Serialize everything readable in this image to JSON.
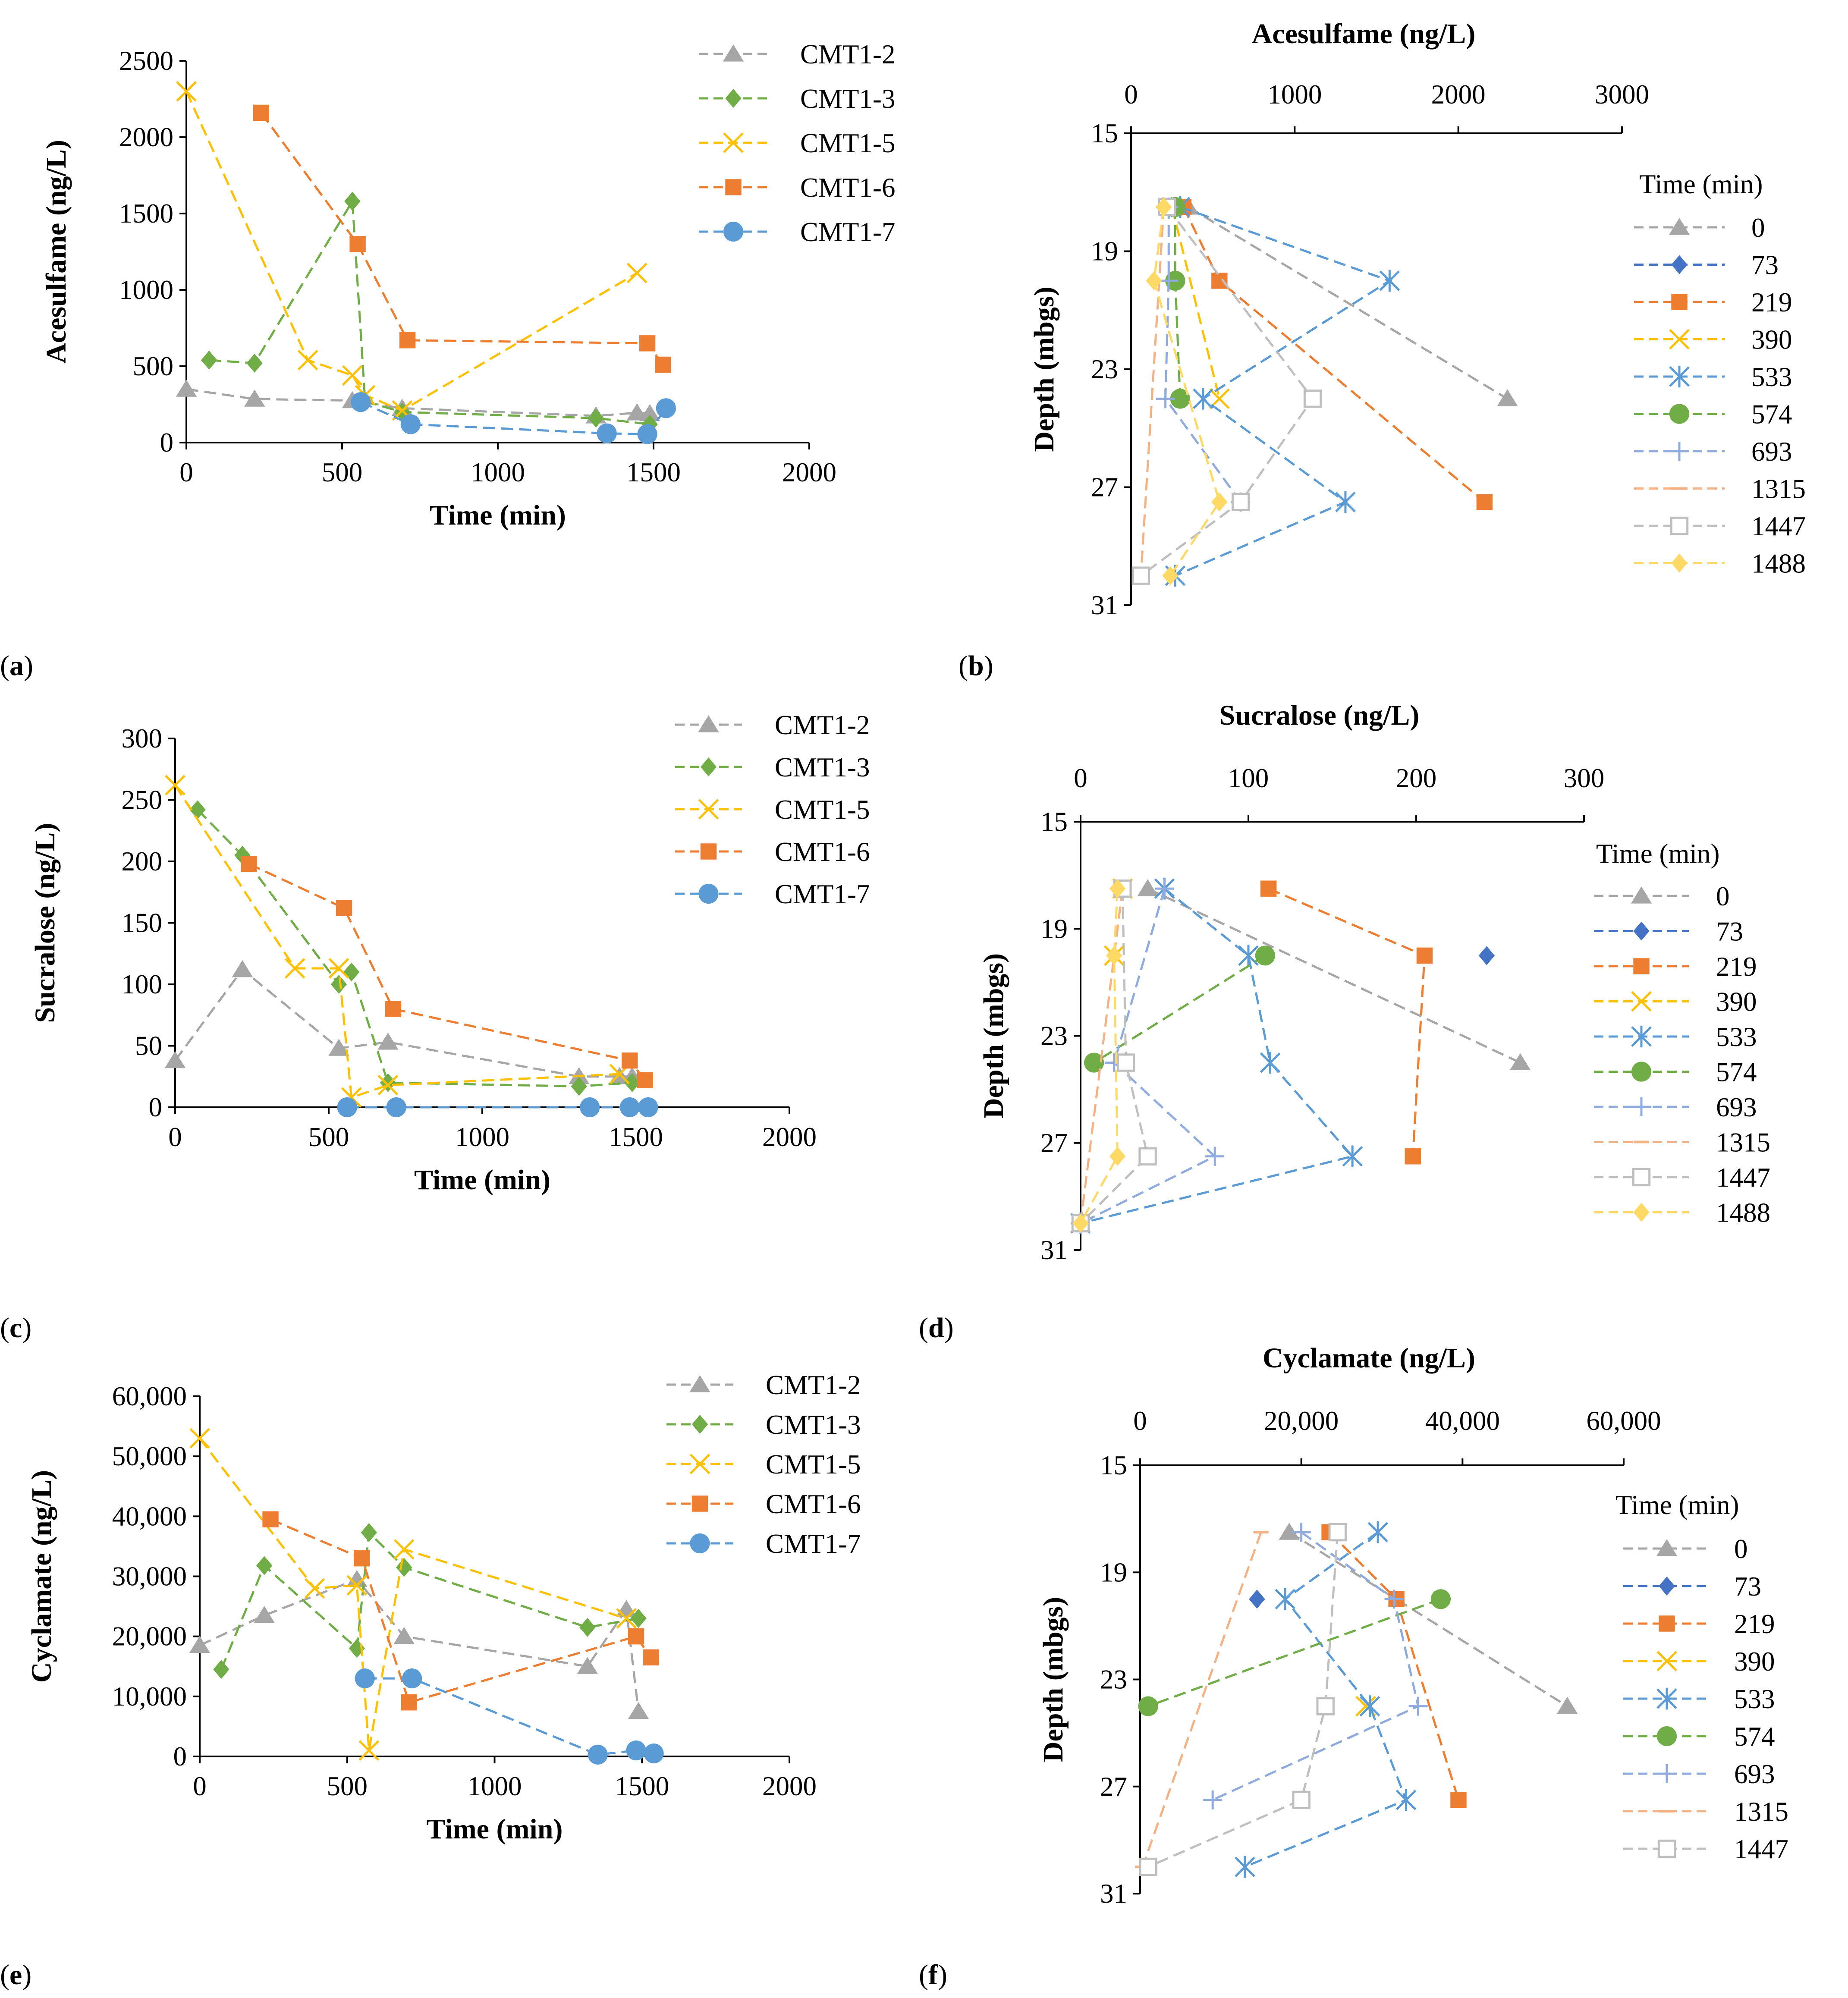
{
  "colors": {
    "CMT1-2": "#a6a6a6",
    "CMT1-3": "#70ad47",
    "CMT1-5": "#ffc000",
    "CMT1-6": "#ed7d31",
    "CMT1-7": "#5b9bd5",
    "t0": "#a6a6a6",
    "t73": "#4472c4",
    "t219": "#ed7d31",
    "t390": "#ffc000",
    "t533": "#5b9bd5",
    "t574": "#70ad47",
    "t693": "#8faadc",
    "t1315": "#f4b183",
    "t1447": "#bfbfbf",
    "t1488": "#ffd966"
  },
  "chart_data": [
    {
      "id": "a",
      "panel_label": "(a)",
      "type": "line",
      "title": "",
      "xlabel": "Time (min)",
      "ylabel": "Acesulfame (ng/L)",
      "xlim": [
        0,
        2000
      ],
      "ylim": [
        0,
        2500
      ],
      "xticks": [
        0,
        500,
        1000,
        1500,
        2000
      ],
      "xtick_labels": [
        "0",
        "500",
        "1000",
        "1500",
        "2000"
      ],
      "yticks": [
        0,
        500,
        1000,
        1500,
        2000,
        2500
      ],
      "ytick_labels": [
        "0",
        "500",
        "1000",
        "1500",
        "2000",
        "2500"
      ],
      "legend_title": "",
      "legend_position": "top-right outside",
      "series": [
        {
          "name": "CMT1-2",
          "marker": "triangle",
          "x": [
            0,
            219,
            533,
            693,
            1315,
            1447,
            1488
          ],
          "y": [
            350,
            285,
            275,
            225,
            175,
            195,
            190
          ]
        },
        {
          "name": "CMT1-3",
          "marker": "diamond",
          "x": [
            73,
            219,
            533,
            574,
            693,
            1315,
            1488
          ],
          "y": [
            540,
            520,
            1580,
            270,
            200,
            160,
            120
          ]
        },
        {
          "name": "CMT1-5",
          "marker": "x",
          "x": [
            0,
            390,
            533,
            574,
            693,
            1447
          ],
          "y": [
            2300,
            540,
            440,
            310,
            210,
            1110
          ]
        },
        {
          "name": "CMT1-6",
          "marker": "square",
          "x": [
            240,
            550,
            710,
            1480,
            1530
          ],
          "y": [
            2160,
            1300,
            670,
            650,
            510
          ]
        },
        {
          "name": "CMT1-7",
          "marker": "circle",
          "x": [
            560,
            720,
            1350,
            1480,
            1540
          ],
          "y": [
            265,
            120,
            60,
            55,
            225
          ]
        }
      ]
    },
    {
      "id": "b",
      "panel_label": "(b)",
      "type": "line",
      "title": "Acesulfame (ng/L)",
      "xlabel": "Acesulfame (ng/L)",
      "ylabel": "Depth (mbgs)",
      "xlim": [
        0,
        3000
      ],
      "ylim": [
        15,
        31
      ],
      "xticks": [
        0,
        1000,
        2000,
        3000
      ],
      "xtick_labels": [
        "0",
        "1000",
        "2000",
        "3000"
      ],
      "yticks": [
        15,
        19,
        23,
        27,
        31
      ],
      "ytick_labels": [
        "15",
        "19",
        "23",
        "27",
        "31"
      ],
      "legend_title": "Time (min)",
      "legend_position": "right",
      "series": [
        {
          "name": "0",
          "marker": "triangle",
          "x": [
            350,
            2300
          ],
          "y": [
            17.5,
            24
          ]
        },
        {
          "name": "73",
          "marker": "diamond",
          "x": [],
          "y": []
        },
        {
          "name": "219",
          "marker": "square",
          "x": [
            320,
            540,
            2160
          ],
          "y": [
            17.5,
            20,
            27.5
          ]
        },
        {
          "name": "390",
          "marker": "x",
          "x": [
            250,
            540
          ],
          "y": [
            17.5,
            24
          ]
        },
        {
          "name": "533",
          "marker": "asterisk",
          "x": [
            300,
            1580,
            440,
            1310,
            270
          ],
          "y": [
            17.5,
            20,
            24,
            27.5,
            30
          ]
        },
        {
          "name": "574",
          "marker": "circle",
          "x": [
            270,
            270,
            300
          ],
          "y": [
            17.5,
            20,
            24
          ]
        },
        {
          "name": "693",
          "marker": "plus",
          "x": [
            230,
            230,
            210,
            670
          ],
          "y": [
            17.5,
            20,
            24,
            27.5
          ]
        },
        {
          "name": "1315",
          "marker": "dash",
          "x": [
            200,
            60
          ],
          "y": [
            17.5,
            30
          ]
        },
        {
          "name": "1447",
          "marker": "open-square",
          "x": [
            220,
            1110,
            670,
            60
          ],
          "y": [
            17.5,
            24,
            27.5,
            30
          ]
        },
        {
          "name": "1488",
          "marker": "diamond",
          "x": [
            200,
            140,
            540,
            240
          ],
          "y": [
            17.5,
            20,
            27.5,
            30
          ]
        }
      ]
    },
    {
      "id": "c",
      "panel_label": "(c)",
      "type": "line",
      "title": "",
      "xlabel": "Time (min)",
      "ylabel": "Sucralose (ng/L)",
      "xlim": [
        0,
        2000
      ],
      "ylim": [
        0,
        300
      ],
      "xticks": [
        0,
        500,
        1000,
        1500,
        2000
      ],
      "xtick_labels": [
        "0",
        "500",
        "1000",
        "1500",
        "2000"
      ],
      "yticks": [
        0,
        50,
        100,
        150,
        200,
        250,
        300
      ],
      "ytick_labels": [
        "0",
        "50",
        "100",
        "150",
        "200",
        "250",
        "300"
      ],
      "legend_title": "",
      "legend_position": "top-right outside",
      "series": [
        {
          "name": "CMT1-2",
          "marker": "triangle",
          "x": [
            0,
            219,
            533,
            693,
            1315,
            1447,
            1488
          ],
          "y": [
            38,
            112,
            48,
            53,
            25,
            25,
            25
          ]
        },
        {
          "name": "CMT1-3",
          "marker": "diamond",
          "x": [
            73,
            219,
            533,
            574,
            693,
            1315,
            1488
          ],
          "y": [
            242,
            205,
            100,
            110,
            20,
            17,
            20
          ]
        },
        {
          "name": "CMT1-5",
          "marker": "x",
          "x": [
            0,
            390,
            533,
            574,
            693,
            1447
          ],
          "y": [
            262,
            113,
            113,
            8,
            18,
            27
          ]
        },
        {
          "name": "CMT1-6",
          "marker": "square",
          "x": [
            240,
            550,
            710,
            1480,
            1530
          ],
          "y": [
            198,
            162,
            80,
            38,
            22
          ]
        },
        {
          "name": "CMT1-7",
          "marker": "circle",
          "x": [
            560,
            720,
            1350,
            1480,
            1540
          ],
          "y": [
            0,
            0,
            0,
            0,
            0
          ]
        }
      ]
    },
    {
      "id": "d",
      "panel_label": "(d)",
      "type": "line",
      "title": "Sucralose (ng/L)",
      "xlabel": "Sucralose (ng/L)",
      "ylabel": "Depth (mbgs)",
      "xlim": [
        0,
        300
      ],
      "ylim": [
        15,
        31
      ],
      "xticks": [
        0,
        100,
        200,
        300
      ],
      "xtick_labels": [
        "0",
        "100",
        "200",
        "300"
      ],
      "yticks": [
        15,
        19,
        23,
        27,
        31
      ],
      "ytick_labels": [
        "15",
        "19",
        "23",
        "27",
        "31"
      ],
      "legend_title": "Time (min)",
      "legend_position": "right",
      "series": [
        {
          "name": "0",
          "marker": "triangle",
          "x": [
            40,
            262
          ],
          "y": [
            17.5,
            24
          ]
        },
        {
          "name": "73",
          "marker": "diamond",
          "x": [
            242
          ],
          "y": [
            20
          ]
        },
        {
          "name": "219",
          "marker": "square",
          "x": [
            112,
            205,
            198
          ],
          "y": [
            17.5,
            20,
            27.5
          ]
        },
        {
          "name": "390",
          "marker": "x",
          "x": [
            25,
            20
          ],
          "y": [
            17.5,
            20
          ]
        },
        {
          "name": "533",
          "marker": "asterisk",
          "x": [
            50,
            100,
            113,
            162,
            0
          ],
          "y": [
            17.5,
            20,
            24,
            27.5,
            30
          ]
        },
        {
          "name": "574",
          "marker": "circle",
          "x": [
            110,
            8
          ],
          "y": [
            20,
            24
          ]
        },
        {
          "name": "693",
          "marker": "plus",
          "x": [
            50,
            20,
            80,
            0
          ],
          "y": [
            17.5,
            24,
            27.5,
            30
          ]
        },
        {
          "name": "1315",
          "marker": "dash",
          "x": [
            25,
            0
          ],
          "y": [
            17.5,
            30
          ]
        },
        {
          "name": "1447",
          "marker": "open-square",
          "x": [
            25,
            27,
            40,
            0
          ],
          "y": [
            17.5,
            24,
            27.5,
            30
          ]
        },
        {
          "name": "1488",
          "marker": "diamond",
          "x": [
            22,
            20,
            22,
            0
          ],
          "y": [
            17.5,
            20,
            27.5,
            30
          ]
        }
      ]
    },
    {
      "id": "e",
      "panel_label": "(e)",
      "type": "line",
      "title": "",
      "xlabel": "Time (min)",
      "ylabel": "Cyclamate (ng/L)",
      "xlim": [
        0,
        2000
      ],
      "ylim": [
        0,
        60000
      ],
      "xticks": [
        0,
        500,
        1000,
        1500,
        2000
      ],
      "xtick_labels": [
        "0",
        "500",
        "1000",
        "1500",
        "2000"
      ],
      "yticks": [
        0,
        10000,
        20000,
        30000,
        40000,
        50000,
        60000
      ],
      "ytick_labels": [
        "0",
        "10,000",
        "20,000",
        "30,000",
        "40,000",
        "50,000",
        "60,000"
      ],
      "legend_title": "",
      "legend_position": "top-right outside",
      "series": [
        {
          "name": "CMT1-2",
          "marker": "triangle",
          "x": [
            0,
            219,
            533,
            693,
            1315,
            1447,
            1488
          ],
          "y": [
            18500,
            23500,
            29500,
            20000,
            15000,
            24500,
            7500
          ]
        },
        {
          "name": "CMT1-3",
          "marker": "diamond",
          "x": [
            73,
            219,
            533,
            574,
            693,
            1315,
            1488
          ],
          "y": [
            14500,
            31800,
            18000,
            37300,
            31500,
            21500,
            23000
          ]
        },
        {
          "name": "CMT1-5",
          "marker": "x",
          "x": [
            0,
            390,
            533,
            574,
            693,
            1447
          ],
          "y": [
            53000,
            28000,
            28500,
            1000,
            34500,
            23000
          ]
        },
        {
          "name": "CMT1-6",
          "marker": "square",
          "x": [
            240,
            550,
            710,
            1480,
            1530
          ],
          "y": [
            39500,
            33000,
            9000,
            20000,
            16500
          ]
        },
        {
          "name": "CMT1-7",
          "marker": "circle",
          "x": [
            560,
            720,
            1350,
            1480,
            1540
          ],
          "y": [
            13000,
            13000,
            300,
            1000,
            500
          ]
        }
      ]
    },
    {
      "id": "f",
      "panel_label": "(f)",
      "type": "line",
      "title": "Cyclamate (ng/L)",
      "xlabel": "Cyclamate (ng/L)",
      "ylabel": "Depth (mbgs)",
      "xlim": [
        0,
        60000
      ],
      "ylim": [
        15,
        31
      ],
      "xticks": [
        0,
        20000,
        40000,
        60000
      ],
      "xtick_labels": [
        "0",
        "20,000",
        "40,000",
        "60,000"
      ],
      "yticks": [
        15,
        19,
        23,
        27,
        31
      ],
      "ytick_labels": [
        "15",
        "19",
        "23",
        "27",
        "31"
      ],
      "legend_title": "Time (min)",
      "legend_position": "right",
      "series": [
        {
          "name": "0",
          "marker": "triangle",
          "x": [
            18500,
            53000
          ],
          "y": [
            17.5,
            24
          ]
        },
        {
          "name": "73",
          "marker": "diamond",
          "x": [
            14500
          ],
          "y": [
            20
          ]
        },
        {
          "name": "219",
          "marker": "square",
          "x": [
            23500,
            31800,
            39500
          ],
          "y": [
            17.5,
            20,
            27.5
          ]
        },
        {
          "name": "390",
          "marker": "x",
          "x": [
            28000
          ],
          "y": [
            24
          ]
        },
        {
          "name": "533",
          "marker": "asterisk",
          "x": [
            29500,
            18000,
            28500,
            33000,
            13000
          ],
          "y": [
            17.5,
            20,
            24,
            27.5,
            30
          ]
        },
        {
          "name": "574",
          "marker": "circle",
          "x": [
            37300,
            1000
          ],
          "y": [
            20,
            24
          ]
        },
        {
          "name": "693",
          "marker": "plus",
          "x": [
            20000,
            31500,
            34500,
            9000
          ],
          "y": [
            17.5,
            20,
            24,
            27.5
          ]
        },
        {
          "name": "1315",
          "marker": "dash",
          "x": [
            15000,
            300
          ],
          "y": [
            17.5,
            30
          ]
        },
        {
          "name": "1447",
          "marker": "open-square",
          "x": [
            24500,
            23000,
            20000,
            1000
          ],
          "y": [
            17.5,
            24,
            27.5,
            30
          ]
        }
      ]
    }
  ]
}
